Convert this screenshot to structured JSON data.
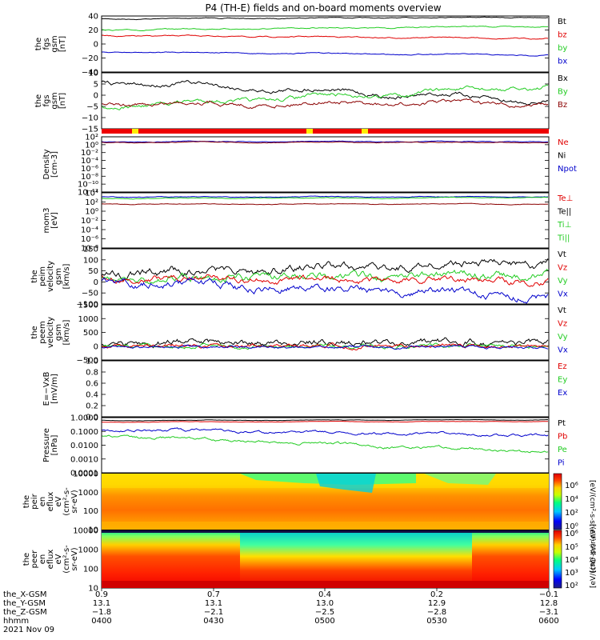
{
  "title": "P4 (TH-E) fields and on-board moments overview",
  "colors": {
    "black": "#000000",
    "red": "#e00000",
    "green": "#22cc22",
    "blue": "#0000cc",
    "darkred": "#8b0000",
    "yellow": "#ffee00"
  },
  "panels": [
    {
      "ylabel": [
        "the",
        "fgs",
        "gsm",
        "[nT]"
      ],
      "ticks": [
        "40",
        "20",
        "0",
        "−20",
        "−40"
      ],
      "legend": [
        {
          "label": "Bt",
          "color": "black"
        },
        {
          "label": "bz",
          "color": "red"
        },
        {
          "label": "by",
          "color": "green"
        },
        {
          "label": "bx",
          "color": "blue"
        }
      ]
    },
    {
      "ylabel": [
        "the",
        "fgs",
        "gsm",
        "[nT]"
      ],
      "ticks": [
        "10",
        "5",
        "0",
        "−5",
        "−10",
        "−15"
      ],
      "legend": [
        {
          "label": "Bx",
          "color": "black"
        },
        {
          "label": "By",
          "color": "green"
        },
        {
          "label": "Bz",
          "color": "darkred"
        }
      ]
    },
    {
      "ylabel": [
        "Density",
        "[cm-3]"
      ],
      "ticks": [
        "10²",
        "10⁰",
        "10⁻²",
        "10⁻⁴",
        "10⁻⁶",
        "10⁻⁸",
        "10⁻¹⁰",
        "10⁻¹²"
      ],
      "legend": [
        {
          "label": "Ne",
          "color": "red"
        },
        {
          "label": "Ni",
          "color": "black"
        },
        {
          "label": "Npot",
          "color": "blue"
        }
      ]
    },
    {
      "ylabel": [
        "mom3",
        "[eV]"
      ],
      "ticks": [
        "10⁴",
        "10²",
        "10⁰",
        "10⁻²",
        "10⁻⁴",
        "10⁻⁶",
        "10⁻⁸"
      ],
      "legend": [
        {
          "label": "Te⊥",
          "color": "red"
        },
        {
          "label": "Te||",
          "color": "black"
        },
        {
          "label": "Ti⊥",
          "color": "green"
        },
        {
          "label": "Ti||",
          "color": "green"
        }
      ]
    },
    {
      "ylabel": [
        "the",
        "peim",
        "velocity",
        "gsm",
        "[km/s]"
      ],
      "ticks": [
        "150",
        "100",
        "50",
        "0",
        "−50",
        "−100"
      ],
      "legend": [
        {
          "label": "Vt",
          "color": "black"
        },
        {
          "label": "Vz",
          "color": "red"
        },
        {
          "label": "Vy",
          "color": "green"
        },
        {
          "label": "Vx",
          "color": "blue"
        }
      ]
    },
    {
      "ylabel": [
        "the",
        "peem",
        "velocity",
        "gsm",
        "[km/s]"
      ],
      "ticks": [
        "1500",
        "1000",
        "500",
        "0",
        "−500"
      ],
      "legend": [
        {
          "label": "Vt",
          "color": "black"
        },
        {
          "label": "Vz",
          "color": "red"
        },
        {
          "label": "Vy",
          "color": "green"
        },
        {
          "label": "Vx",
          "color": "blue"
        }
      ]
    },
    {
      "ylabel": [
        "E=−VxB",
        "[mV/m]"
      ],
      "ticks": [
        "1.0",
        "0.8",
        "0.6",
        "0.4",
        "0.2",
        "0.0"
      ],
      "legend": [
        {
          "label": "Ez",
          "color": "red"
        },
        {
          "label": "Ey",
          "color": "green"
        },
        {
          "label": "Ex",
          "color": "blue"
        }
      ]
    },
    {
      "ylabel": [
        "Pressure",
        "[nPa]"
      ],
      "ticks": [
        "1.0000",
        "0.1000",
        "0.0100",
        "0.0010",
        "0.0001"
      ],
      "legend": [
        {
          "label": "Pt",
          "color": "black"
        },
        {
          "label": "Pb",
          "color": "red"
        },
        {
          "label": "Pe",
          "color": "green"
        },
        {
          "label": "Pi",
          "color": "blue"
        }
      ]
    },
    {
      "ylabel": [
        "the",
        "peir",
        "en",
        "eflux",
        "eV",
        "(cm²-s-",
        "sr-eV)"
      ],
      "ticks": [
        "10000",
        "1000",
        "100",
        "10"
      ],
      "legend": []
    },
    {
      "ylabel": [
        "the",
        "peer",
        "en",
        "eflux",
        "eV",
        "(cm²-s-",
        "sr-eV)"
      ],
      "ticks": [
        "10000",
        "1000",
        "100",
        "10"
      ],
      "legend": []
    }
  ],
  "colorbar": {
    "label": "[eV/(cm²-s-sr-eV)]",
    "label2": "[eV/(cm²-s-sr-eV) (All Qs)]",
    "top_ticks": [
      "10⁶",
      "10⁴",
      "10²",
      "10⁰"
    ],
    "bottom_ticks": [
      "10⁶",
      "10⁵",
      "10⁴",
      "10³",
      "10²"
    ]
  },
  "xaxis": {
    "rows": [
      {
        "label": "the_X-GSM",
        "values": [
          "0.9",
          "0.7",
          "0.4",
          "0.2",
          "−0.1"
        ]
      },
      {
        "label": "the_Y-GSM",
        "values": [
          "13.1",
          "13.1",
          "13.0",
          "12.9",
          "12.8"
        ]
      },
      {
        "label": "the_Z-GSM",
        "values": [
          "−1.8",
          "−2.1",
          "−2.5",
          "−2.8",
          "−3.1"
        ]
      },
      {
        "label": "hhmm",
        "values": [
          "0400",
          "0430",
          "0500",
          "0530",
          "0600"
        ]
      }
    ],
    "date": "2021 Nov 09"
  }
}
